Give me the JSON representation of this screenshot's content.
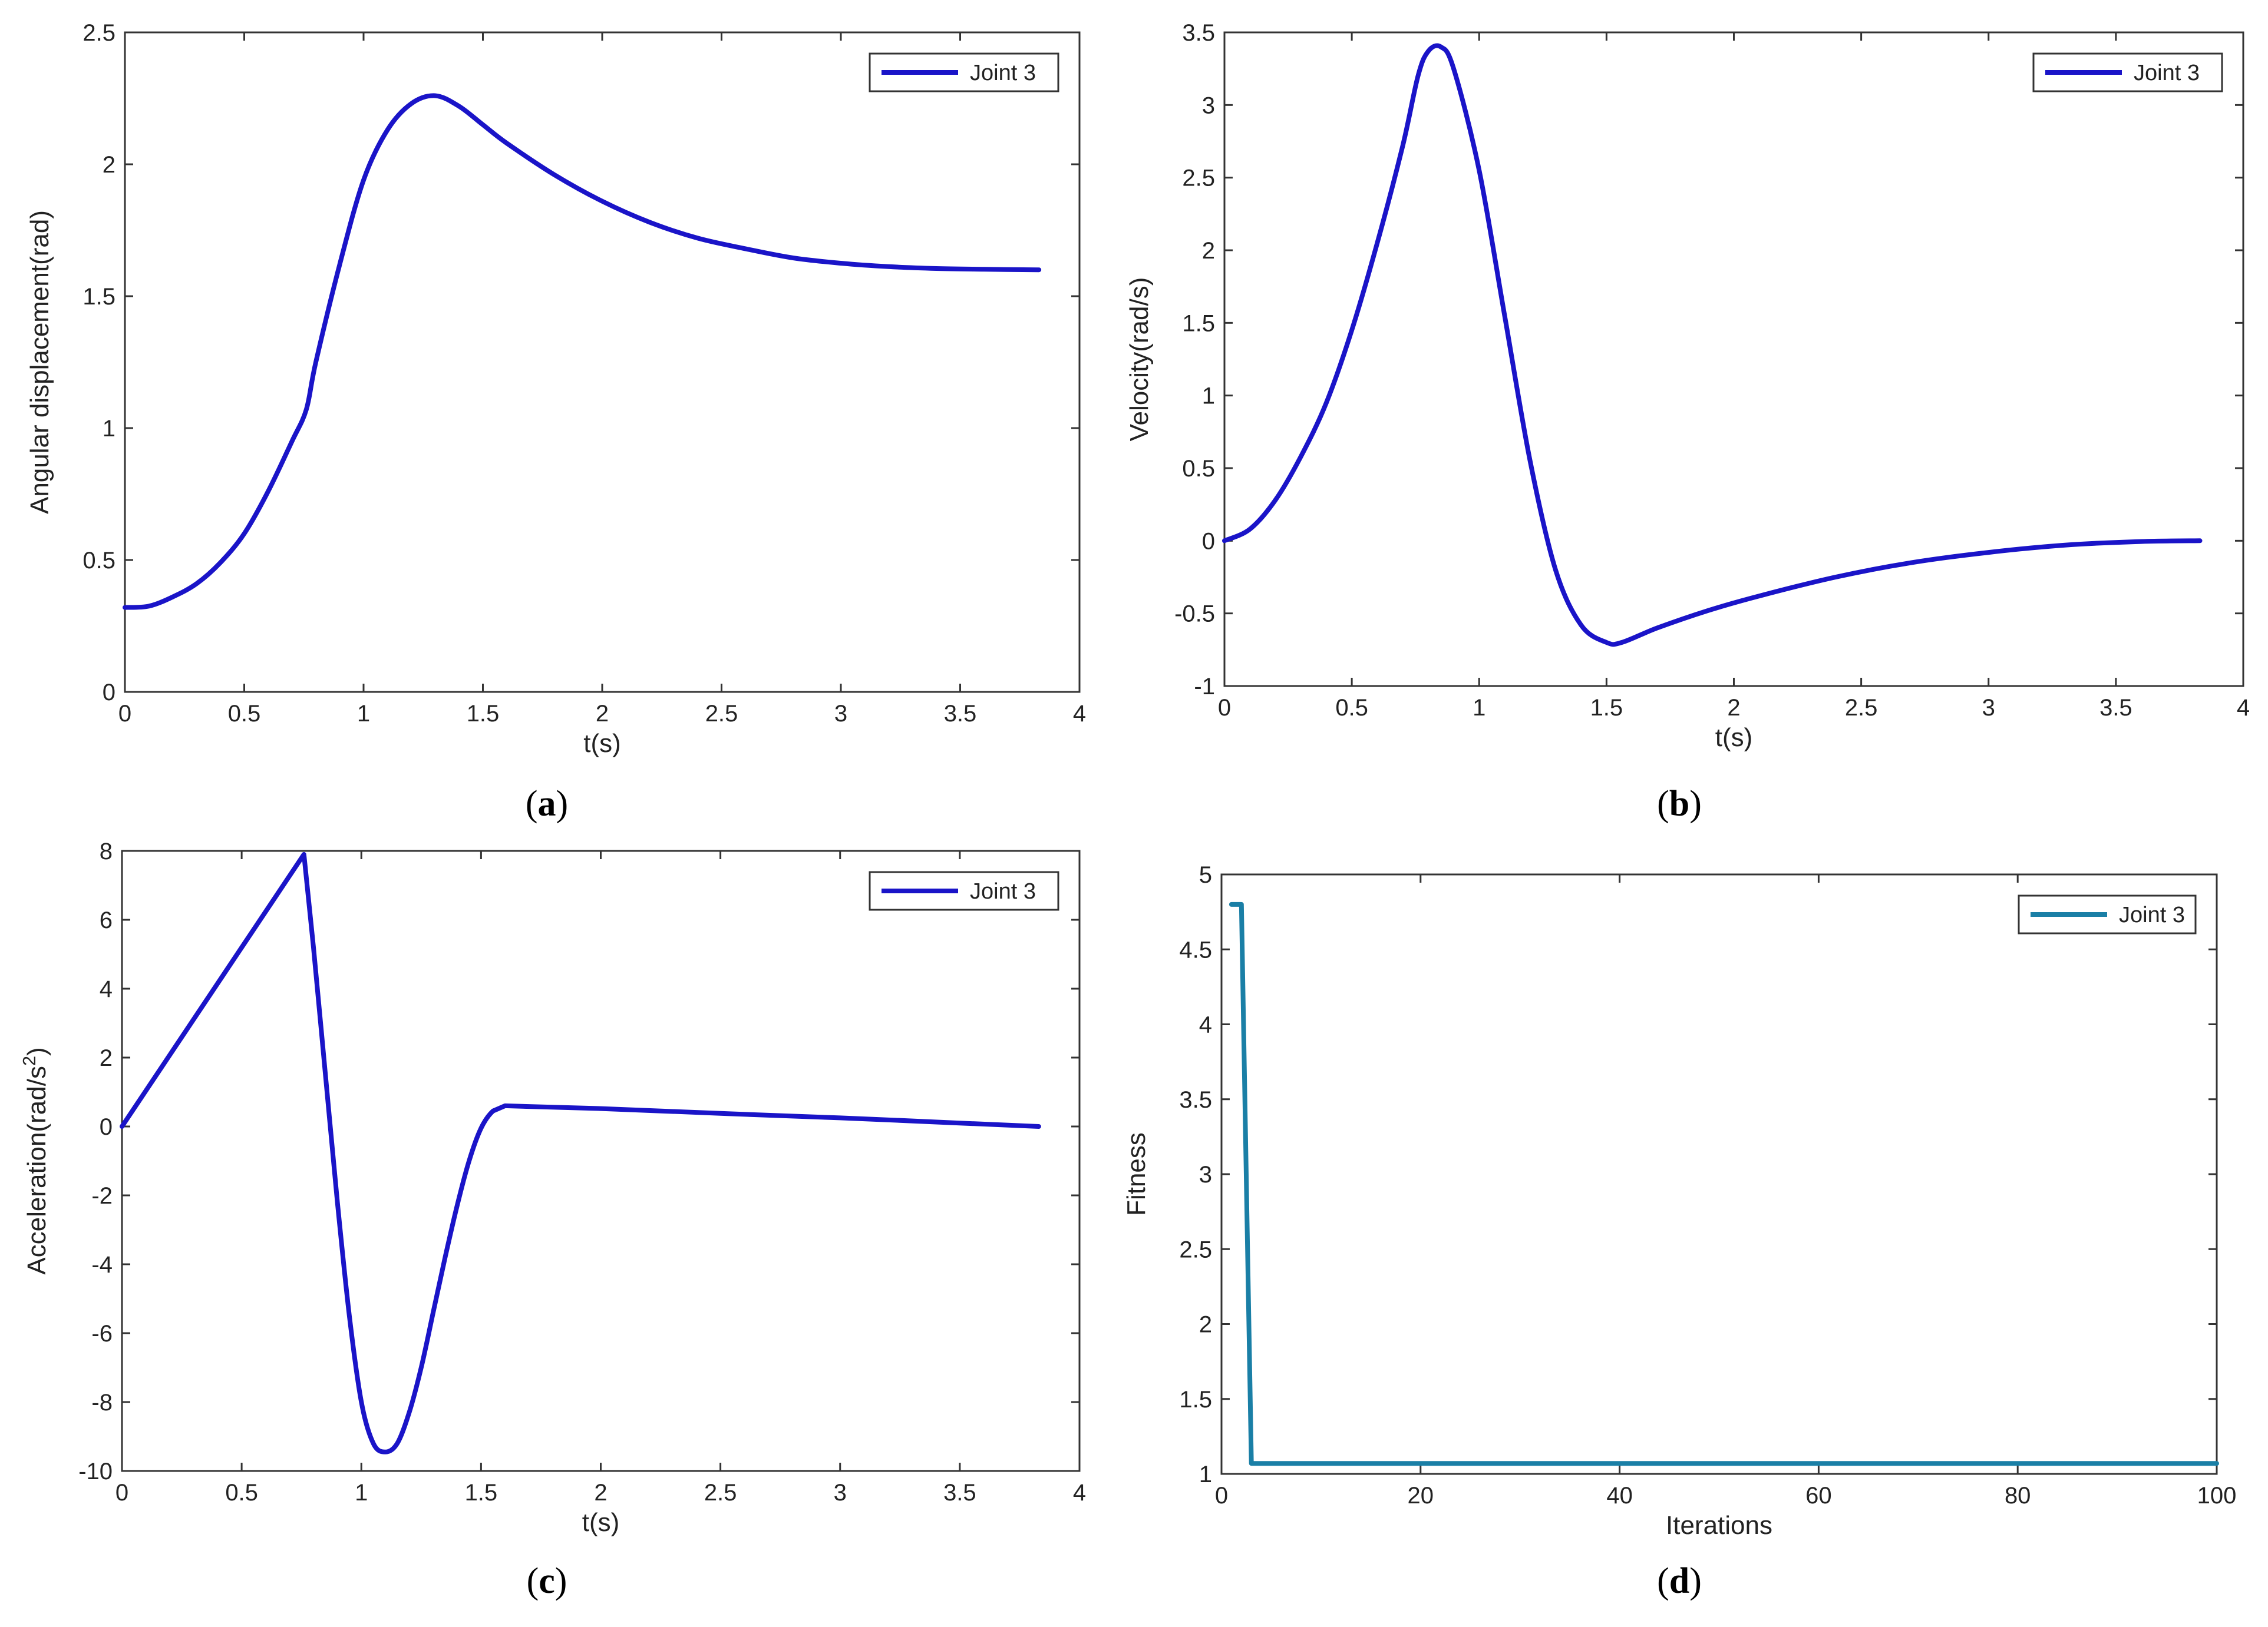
{
  "figure": {
    "panel_labels": [
      "a",
      "b",
      "c",
      "d"
    ]
  },
  "colors": {
    "line": "#1a14c8",
    "fitness_line": "#1a7fa6",
    "axes": "#333333",
    "text": "#222222"
  },
  "chart_data": [
    {
      "id": "a",
      "type": "line",
      "xlabel": "t(s)",
      "ylabel": "Angular displacement(rad)",
      "xlim": [
        0,
        4
      ],
      "ylim": [
        0,
        2.5
      ],
      "xticks": [
        0,
        0.5,
        1,
        1.5,
        2,
        2.5,
        3,
        3.5,
        4
      ],
      "xtick_labels": [
        "0",
        "0.5",
        "1",
        "1.5",
        "2",
        "2.5",
        "3",
        "3.5",
        "4"
      ],
      "yticks": [
        0,
        0.5,
        1,
        1.5,
        2,
        2.5
      ],
      "ytick_labels": [
        "0",
        "0.5",
        "1",
        "1.5",
        "2",
        "2.5"
      ],
      "legend": {
        "position": "top-right",
        "entries": [
          "Joint 3"
        ]
      },
      "grid": false,
      "series": [
        {
          "name": "Joint 3",
          "x": [
            0,
            0.1,
            0.2,
            0.3,
            0.4,
            0.5,
            0.6,
            0.7,
            0.76,
            0.8,
            0.9,
            1.0,
            1.1,
            1.2,
            1.3,
            1.4,
            1.5,
            1.6,
            1.8,
            2.0,
            2.2,
            2.4,
            2.6,
            2.8,
            3.0,
            3.2,
            3.4,
            3.6,
            3.83
          ],
          "y": [
            0.32,
            0.325,
            0.36,
            0.41,
            0.49,
            0.6,
            0.76,
            0.95,
            1.07,
            1.25,
            1.62,
            1.94,
            2.13,
            2.23,
            2.26,
            2.22,
            2.15,
            2.08,
            1.96,
            1.86,
            1.78,
            1.72,
            1.68,
            1.645,
            1.625,
            1.612,
            1.605,
            1.602,
            1.6
          ]
        }
      ]
    },
    {
      "id": "b",
      "type": "line",
      "xlabel": "t(s)",
      "ylabel": "Velocity(rad/s)",
      "xlim": [
        0,
        4
      ],
      "ylim": [
        -1,
        3.5
      ],
      "xticks": [
        0,
        0.5,
        1,
        1.5,
        2,
        2.5,
        3,
        3.5,
        4
      ],
      "xtick_labels": [
        "0",
        "0.5",
        "1",
        "1.5",
        "2",
        "2.5",
        "3",
        "3.5",
        "4"
      ],
      "yticks": [
        -1,
        -0.5,
        0,
        0.5,
        1,
        1.5,
        2,
        2.5,
        3,
        3.5
      ],
      "ytick_labels": [
        "-1",
        "-0.5",
        "0",
        "0.5",
        "1",
        "1.5",
        "2",
        "2.5",
        "3",
        "3.5"
      ],
      "legend": {
        "position": "top-right",
        "entries": [
          "Joint 3"
        ]
      },
      "grid": false,
      "series": [
        {
          "name": "Joint 3",
          "x": [
            0,
            0.1,
            0.2,
            0.3,
            0.4,
            0.5,
            0.6,
            0.7,
            0.76,
            0.8,
            0.85,
            0.9,
            1.0,
            1.1,
            1.2,
            1.3,
            1.4,
            1.5,
            1.56,
            1.7,
            1.9,
            2.1,
            2.4,
            2.7,
            3.0,
            3.3,
            3.6,
            3.83
          ],
          "y": [
            0,
            0.08,
            0.28,
            0.58,
            0.95,
            1.45,
            2.05,
            2.72,
            3.2,
            3.37,
            3.4,
            3.25,
            2.55,
            1.55,
            0.55,
            -0.2,
            -0.58,
            -0.7,
            -0.7,
            -0.6,
            -0.48,
            -0.38,
            -0.25,
            -0.15,
            -0.08,
            -0.03,
            -0.005,
            0
          ]
        }
      ]
    },
    {
      "id": "c",
      "type": "line",
      "xlabel": "t(s)",
      "ylabel": "Acceleration(rad/s",
      "ylabel_sup": "2",
      "ylabel_end": ")",
      "xlim": [
        0,
        4
      ],
      "ylim": [
        -10,
        8
      ],
      "xticks": [
        0,
        0.5,
        1,
        1.5,
        2,
        2.5,
        3,
        3.5,
        4
      ],
      "xtick_labels": [
        "0",
        "0.5",
        "1",
        "1.5",
        "2",
        "2.5",
        "3",
        "3.5",
        "4"
      ],
      "yticks": [
        -10,
        -8,
        -6,
        -4,
        -2,
        0,
        2,
        4,
        6,
        8
      ],
      "ytick_labels": [
        "-10",
        "-8",
        "-6",
        "-4",
        "-2",
        "0",
        "2",
        "4",
        "6",
        "8"
      ],
      "legend": {
        "position": "top-right",
        "entries": [
          "Joint 3"
        ]
      },
      "grid": false,
      "series": [
        {
          "name": "Joint 3",
          "x": [
            0,
            0.76,
            0.8,
            0.85,
            0.9,
            0.95,
            1.0,
            1.05,
            1.1,
            1.15,
            1.2,
            1.25,
            1.3,
            1.35,
            1.4,
            1.45,
            1.5,
            1.55,
            1.6,
            2.0,
            2.5,
            3.0,
            3.5,
            3.83
          ],
          "y": [
            0,
            7.9,
            5.2,
            1.5,
            -2.2,
            -5.5,
            -8.0,
            -9.2,
            -9.45,
            -9.2,
            -8.3,
            -7.0,
            -5.4,
            -3.8,
            -2.3,
            -1.0,
            -0.05,
            0.45,
            0.6,
            0.52,
            0.38,
            0.25,
            0.1,
            0
          ]
        }
      ]
    },
    {
      "id": "d",
      "type": "line",
      "xlabel": "Iterations",
      "ylabel": "Fitness",
      "xlim": [
        0,
        100
      ],
      "ylim": [
        1,
        5
      ],
      "xticks": [
        0,
        20,
        40,
        60,
        80,
        100
      ],
      "xtick_labels": [
        "0",
        "20",
        "40",
        "60",
        "80",
        "100"
      ],
      "yticks": [
        1,
        1.5,
        2,
        2.5,
        3,
        3.5,
        4,
        4.5,
        5
      ],
      "ytick_labels": [
        "1",
        "1.5",
        "2",
        "2.5",
        "3",
        "3.5",
        "4",
        "4.5",
        "5"
      ],
      "legend": {
        "position": "top-right",
        "entries": [
          "Joint 3"
        ]
      },
      "grid": false,
      "series": [
        {
          "name": "Joint 3",
          "x": [
            1,
            2,
            3,
            100
          ],
          "y": [
            4.8,
            4.8,
            1.07,
            1.07
          ]
        }
      ]
    }
  ]
}
